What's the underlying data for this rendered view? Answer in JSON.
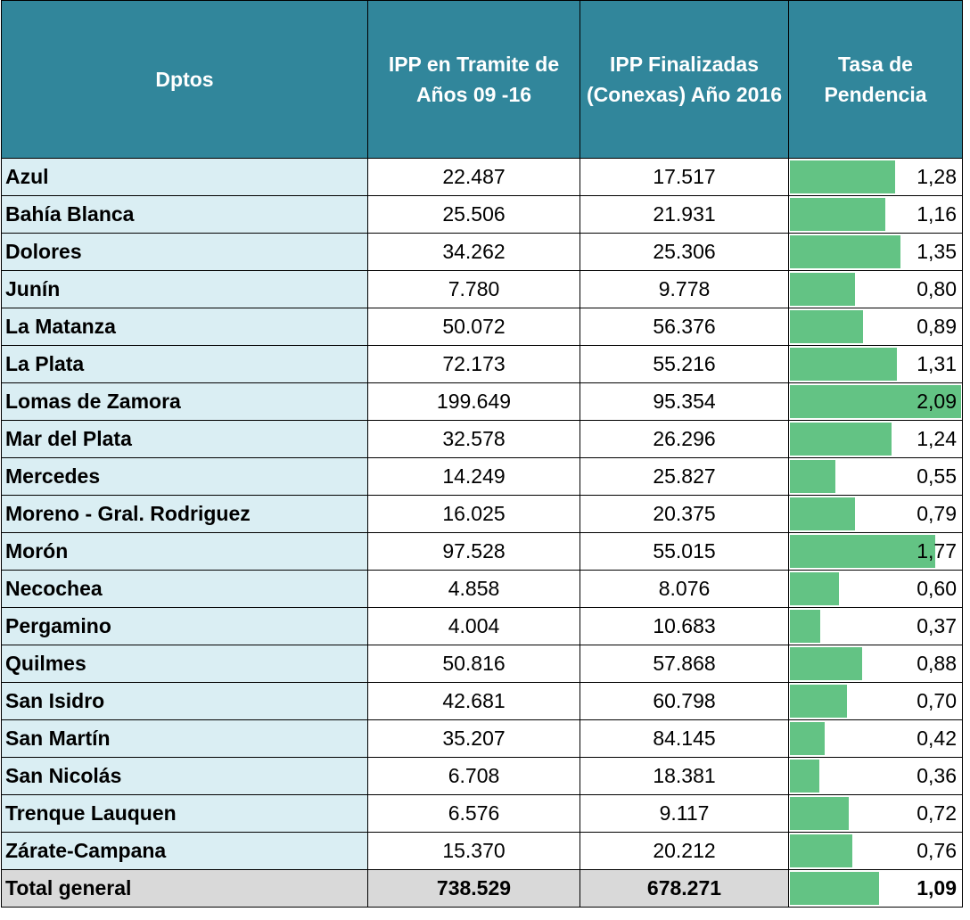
{
  "header": [
    "Dptos",
    "IPP en Tramite de Años 09 -16",
    "IPP Finalizadas (Conexas) Año 2016",
    "Tasa de Pendencia"
  ],
  "rows": [
    [
      "Azul",
      "22.487",
      "17.517",
      {
        "value": 1.28,
        "label": "1,28"
      }
    ],
    [
      "Bahía Blanca",
      "25.506",
      "21.931",
      {
        "value": 1.16,
        "label": "1,16"
      }
    ],
    [
      "Dolores",
      "34.262",
      "25.306",
      {
        "value": 1.35,
        "label": "1,35"
      }
    ],
    [
      "Junín",
      "7.780",
      "9.778",
      {
        "value": 0.8,
        "label": "0,80"
      }
    ],
    [
      "La Matanza",
      "50.072",
      "56.376",
      {
        "value": 0.89,
        "label": "0,89"
      }
    ],
    [
      "La Plata",
      "72.173",
      "55.216",
      {
        "value": 1.31,
        "label": "1,31"
      }
    ],
    [
      "Lomas de Zamora",
      "199.649",
      "95.354",
      {
        "value": 2.09,
        "label": "2,09"
      }
    ],
    [
      "Mar del Plata",
      "32.578",
      "26.296",
      {
        "value": 1.24,
        "label": "1,24"
      }
    ],
    [
      "Mercedes",
      "14.249",
      "25.827",
      {
        "value": 0.55,
        "label": "0,55"
      }
    ],
    [
      "Moreno - Gral. Rodriguez",
      "16.025",
      "20.375",
      {
        "value": 0.79,
        "label": "0,79"
      }
    ],
    [
      "Morón",
      "97.528",
      "55.015",
      {
        "value": 1.77,
        "label": "1,77"
      }
    ],
    [
      "Necochea",
      "4.858",
      "8.076",
      {
        "value": 0.6,
        "label": "0,60"
      }
    ],
    [
      "Pergamino",
      "4.004",
      "10.683",
      {
        "value": 0.37,
        "label": "0,37"
      }
    ],
    [
      "Quilmes",
      "50.816",
      "57.868",
      {
        "value": 0.88,
        "label": "0,88"
      }
    ],
    [
      "San Isidro",
      "42.681",
      "60.798",
      {
        "value": 0.7,
        "label": "0,70"
      }
    ],
    [
      "San Martín",
      "35.207",
      "84.145",
      {
        "value": 0.42,
        "label": "0,42"
      }
    ],
    [
      "San Nicolás",
      "6.708",
      "18.381",
      {
        "value": 0.36,
        "label": "0,36"
      }
    ],
    [
      "Trenque Lauquen",
      "6.576",
      "9.117",
      {
        "value": 0.72,
        "label": "0,72"
      }
    ],
    [
      "Zárate-Campana",
      "15.370",
      "20.212",
      {
        "value": 0.76,
        "label": "0,76"
      }
    ]
  ],
  "total": [
    "Total general",
    "738.529",
    "678.271",
    {
      "value": 1.09,
      "label": "1,09"
    }
  ]
}
